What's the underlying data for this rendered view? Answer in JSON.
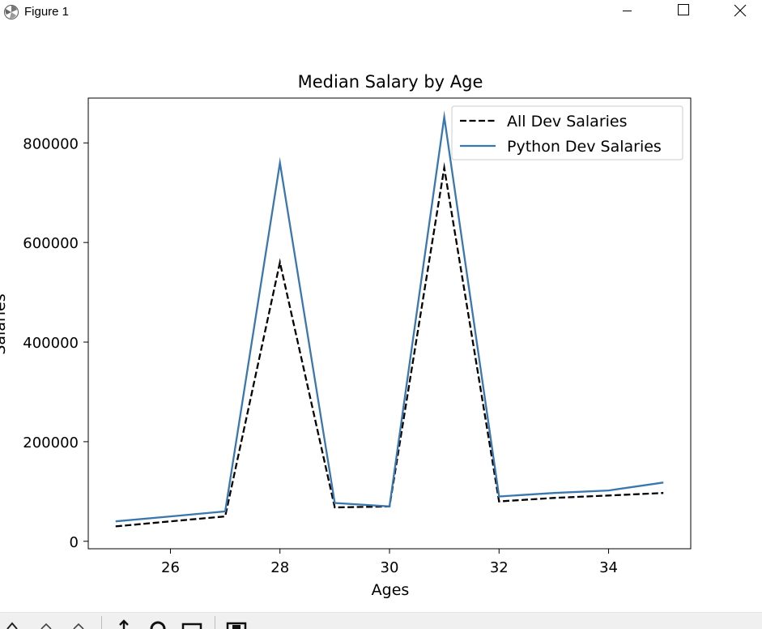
{
  "window": {
    "title": "Figure 1",
    "icons": [
      "matplotlib-icon",
      "minimize-icon",
      "maximize-icon",
      "close-icon"
    ]
  },
  "toolbar": {
    "icons": [
      "home-icon",
      "back-icon",
      "forward-icon",
      "pan-icon",
      "zoom-icon",
      "configure-subplots-icon",
      "save-icon"
    ]
  },
  "chart_data": {
    "type": "line",
    "title": "Median Salary by Age",
    "xlabel": "Ages",
    "ylabel": "Salaries",
    "xlim": [
      24.5,
      35.5
    ],
    "ylim": [
      -15000,
      890000
    ],
    "xticks": [
      26,
      28,
      30,
      32,
      34
    ],
    "yticks": [
      0,
      200000,
      400000,
      600000,
      800000
    ],
    "x": [
      25,
      26,
      27,
      28,
      29,
      30,
      31,
      32,
      33,
      34,
      35
    ],
    "series": [
      {
        "name": "All Dev Salaries",
        "values": [
          30000,
          40000,
          50000,
          560000,
          68000,
          70000,
          750000,
          80000,
          87000,
          92000,
          97000
        ],
        "color": "#000000",
        "style": "dashed"
      },
      {
        "name": "Python Dev Salaries",
        "values": [
          40000,
          50000,
          60000,
          760000,
          77000,
          70000,
          852000,
          90000,
          97000,
          102000,
          118000
        ],
        "color": "#3a77ae",
        "style": "solid"
      }
    ],
    "legend": "upper right",
    "grid": false
  }
}
